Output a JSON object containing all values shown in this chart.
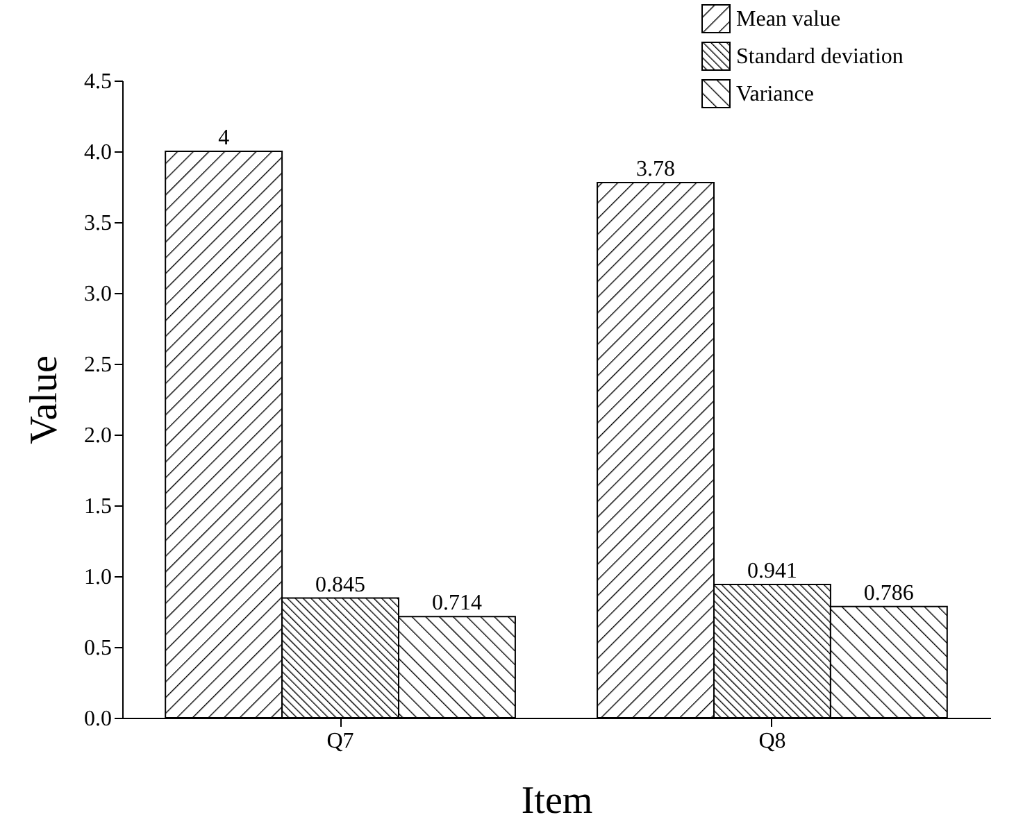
{
  "chart_data": {
    "type": "bar",
    "xlabel": "Item",
    "ylabel": "Value",
    "categories": [
      "Q7",
      "Q8"
    ],
    "series": [
      {
        "name": "Mean value",
        "color": "#000000",
        "values": [
          4,
          3.78
        ]
      },
      {
        "name": "Standard deviation",
        "color": "#000000",
        "values": [
          0.845,
          0.941
        ]
      },
      {
        "name": "Variance",
        "color": "#000000",
        "values": [
          0.714,
          0.786
        ]
      }
    ],
    "ylim": [
      0,
      4.5
    ],
    "yticks": [
      {
        "value": 0,
        "label": "0.0"
      },
      0.5,
      {
        "value": 1,
        "label": "1.0"
      },
      1.5,
      {
        "value": 2,
        "label": "2.0"
      },
      2.5,
      {
        "value": 3,
        "label": "3.0"
      },
      3.5,
      {
        "value": 4,
        "label": "4.0"
      },
      4.5
    ],
    "data_labels": true,
    "legend": "top right",
    "grid": false
  }
}
